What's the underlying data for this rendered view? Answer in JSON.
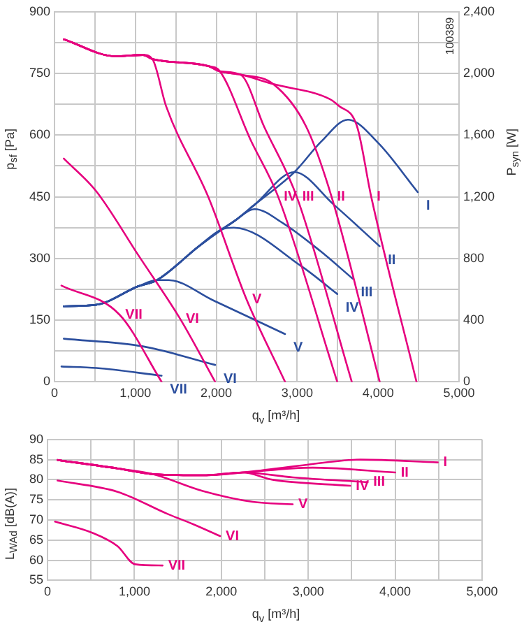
{
  "chart_data": [
    {
      "type": "line",
      "xlabel": "q$_{v}$ [m³/h]",
      "ylabel": "p$_{sf}$ [Pa]",
      "y2label": "P$_{syn}$ [W]",
      "annotations": [
        "100389"
      ],
      "xlim": [
        0,
        5000
      ],
      "xticks": [
        0,
        {
          "value": 500,
          "label": null
        },
        {
          "value": 1000,
          "label": "1,000"
        },
        {
          "value": 1500,
          "label": null
        },
        {
          "value": 2000,
          "label": "2,000"
        },
        {
          "value": 2500,
          "label": null
        },
        {
          "value": 3000,
          "label": "3,000"
        },
        {
          "value": 3500,
          "label": null
        },
        {
          "value": 4000,
          "label": "4,000"
        },
        {
          "value": 4500,
          "label": null
        },
        {
          "value": 5000,
          "label": "5,000"
        }
      ],
      "ylim": [
        0,
        900
      ],
      "yticks": [
        0,
        {
          "value": 75,
          "label": null
        },
        150,
        {
          "value": 225,
          "label": null
        },
        300,
        {
          "value": 375,
          "label": null
        },
        450,
        {
          "value": 525,
          "label": null
        },
        600,
        {
          "value": 675,
          "label": null
        },
        750,
        {
          "value": 825,
          "label": null
        },
        900
      ],
      "y2lim": [
        0,
        2400
      ],
      "y2ticks": [
        0,
        400,
        800,
        {
          "value": 1200,
          "label": "1,200"
        },
        {
          "value": 1600,
          "label": "1,600"
        },
        {
          "value": 2000,
          "label": "2,000"
        },
        {
          "value": 2400,
          "label": "2,400"
        }
      ],
      "grid": true,
      "legend": false,
      "marker": "none",
      "line_style": "solid",
      "series": [
        {
          "name": "I",
          "color": "#e6007e",
          "x": [
            115,
            750,
            1095,
            1210,
            1900,
            2045,
            2300,
            2705,
            3400,
            3510,
            3740,
            3915,
            4475
          ],
          "values": [
            833,
            792,
            795,
            785,
            768,
            755,
            747,
            724,
            688,
            672,
            621,
            450,
            0
          ]
        },
        {
          "name": "II",
          "color": "#e6007e",
          "x": [
            115,
            750,
            1095,
            1210,
            1900,
            2045,
            2300,
            2705,
            3110,
            3425,
            4020
          ],
          "values": [
            833,
            792,
            795,
            785,
            768,
            755,
            747,
            724,
            621,
            450,
            0
          ]
        },
        {
          "name": "III",
          "color": "#e6007e",
          "x": [
            115,
            750,
            1095,
            1210,
            1900,
            2045,
            2300,
            2590,
            2995,
            3675
          ],
          "values": [
            833,
            792,
            795,
            785,
            768,
            755,
            747,
            621,
            450,
            0
          ]
        },
        {
          "name": "IV",
          "color": "#e6007e",
          "x": [
            115,
            750,
            1095,
            1210,
            1900,
            2045,
            2420,
            2765,
            3495
          ],
          "values": [
            833,
            792,
            795,
            785,
            768,
            755,
            590,
            450,
            0
          ]
        },
        {
          "name": "V",
          "color": "#e6007e",
          "x": [
            115,
            750,
            1095,
            1210,
            1380,
            1900,
            2375,
            2850
          ],
          "values": [
            833,
            792,
            795,
            785,
            670,
            450,
            200,
            0
          ]
        },
        {
          "name": "VI",
          "color": "#e6007e",
          "x": [
            115,
            518,
            1036,
            1554,
            1986
          ],
          "values": [
            543,
            463,
            308,
            153,
            0
          ]
        },
        {
          "name": "VII",
          "color": "#e6007e",
          "x": [
            86,
            806,
            1324
          ],
          "values": [
            234,
            163,
            0
          ]
        },
        {
          "name": "I",
          "color": "#2c4f9e",
          "axis": "y2",
          "x": [
            115,
            518,
            1036,
            1267,
            1785,
            2072,
            2216,
            2476,
            2965,
            3300,
            3627,
            4000,
            4490
          ],
          "values": [
            490,
            500,
            620,
            660,
            880,
            990,
            1040,
            1150,
            1360,
            1560,
            1700,
            1550,
            1230
          ]
        },
        {
          "name": "II",
          "color": "#2c4f9e",
          "axis": "y2",
          "x": [
            115,
            518,
            1036,
            1267,
            1785,
            2072,
            2216,
            2476,
            2965,
            3450,
            4018
          ],
          "values": [
            490,
            500,
            620,
            660,
            880,
            990,
            1040,
            1150,
            1360,
            1150,
            880
          ]
        },
        {
          "name": "III",
          "color": "#2c4f9e",
          "axis": "y2",
          "x": [
            115,
            518,
            1036,
            1267,
            1785,
            2072,
            2216,
            2476,
            2821,
            3282,
            3684
          ],
          "values": [
            490,
            500,
            620,
            660,
            880,
            990,
            1040,
            1120,
            1030,
            850,
            670
          ]
        },
        {
          "name": "IV",
          "color": "#2c4f9e",
          "axis": "y2",
          "x": [
            115,
            518,
            1036,
            1267,
            1785,
            2072,
            2216,
            3051,
            3495
          ],
          "values": [
            490,
            500,
            620,
            660,
            880,
            990,
            1000,
            750,
            570
          ]
        },
        {
          "name": "V",
          "color": "#2c4f9e",
          "axis": "y2",
          "x": [
            115,
            518,
            1036,
            1267,
            1410,
            1957,
            2850
          ],
          "values": [
            490,
            500,
            620,
            660,
            660,
            530,
            310
          ]
        },
        {
          "name": "VI",
          "color": "#2c4f9e",
          "axis": "y2",
          "x": [
            115,
            1094,
            1986
          ],
          "values": [
            280,
            230,
            110
          ]
        },
        {
          "name": "VII",
          "color": "#2c4f9e",
          "axis": "y2",
          "x": [
            86,
            518,
            1324
          ],
          "values": [
            100,
            90,
            40
          ]
        }
      ]
    },
    {
      "type": "line",
      "xlabel": "q$_{v}$ [m³/h]",
      "ylabel": "L$_{WAd}$ [dB(A)]",
      "xlim": [
        0,
        5000
      ],
      "xticks": [
        0,
        {
          "value": 500,
          "label": null
        },
        {
          "value": 1000,
          "label": "1,000"
        },
        {
          "value": 1500,
          "label": null
        },
        {
          "value": 2000,
          "label": "2,000"
        },
        {
          "value": 2500,
          "label": null
        },
        {
          "value": 3000,
          "label": "3,000"
        },
        {
          "value": 3500,
          "label": null
        },
        {
          "value": 4000,
          "label": "4,000"
        },
        {
          "value": 4500,
          "label": null
        },
        {
          "value": 5000,
          "label": "5,000"
        }
      ],
      "ylim": [
        55,
        90
      ],
      "yticks": [
        55,
        60,
        65,
        70,
        75,
        80,
        85,
        90
      ],
      "grid": true,
      "legend": false,
      "marker": "none",
      "line_style": "solid",
      "series": [
        {
          "name": "I",
          "color": "#e6007e",
          "x": [
            115,
            806,
            1209,
            1785,
            2245,
            2900,
            3600,
            4490
          ],
          "values": [
            84.9,
            82.8,
            81.4,
            81.1,
            81.8,
            83.5,
            85,
            84.3
          ]
        },
        {
          "name": "II",
          "color": "#e6007e",
          "x": [
            115,
            806,
            1209,
            1785,
            2245,
            3051,
            4001
          ],
          "values": [
            84.9,
            82.8,
            81.4,
            81.1,
            81.8,
            83,
            81.8
          ]
        },
        {
          "name": "III",
          "color": "#e6007e",
          "x": [
            115,
            806,
            1209,
            1785,
            2245,
            2821,
            3684
          ],
          "values": [
            84.9,
            82.8,
            81.4,
            81.1,
            81.8,
            80.6,
            79.4
          ]
        },
        {
          "name": "IV",
          "color": "#e6007e",
          "x": [
            115,
            806,
            1209,
            1785,
            2245,
            2590,
            3483
          ],
          "values": [
            84.9,
            82.8,
            81.4,
            81.1,
            81.8,
            80,
            78.5
          ]
        },
        {
          "name": "V",
          "color": "#e6007e",
          "x": [
            115,
            806,
            1209,
            1785,
            2360,
            2821
          ],
          "values": [
            84.9,
            82.8,
            81.4,
            77.2,
            74.5,
            73.9
          ]
        },
        {
          "name": "VI",
          "color": "#e6007e",
          "x": [
            115,
            806,
            1382,
            1670,
            1986
          ],
          "values": [
            79.8,
            77,
            71.5,
            69,
            66
          ]
        },
        {
          "name": "VII",
          "color": "#e6007e",
          "x": [
            86,
            518,
            806,
            1007,
            1324
          ],
          "values": [
            69.6,
            66.8,
            63.5,
            59,
            58.7
          ]
        }
      ]
    }
  ]
}
